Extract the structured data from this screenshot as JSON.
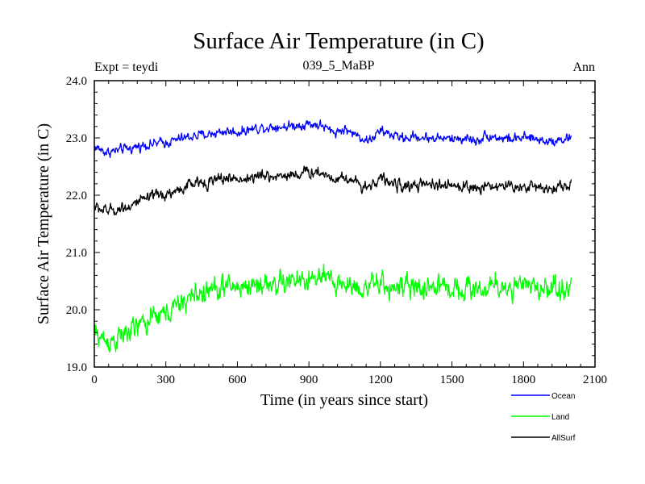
{
  "chart_data": {
    "type": "line",
    "title": "Surface Air Temperature (in C)",
    "subtitle": "039_5_MaBP",
    "experiment_label": "Expt = teydi",
    "season_label": "Ann",
    "xlabel": "Time (in years since start)",
    "ylabel": "Surface Air Temperature (in C)",
    "xlim": [
      0,
      2100
    ],
    "ylim": [
      19.0,
      24.0
    ],
    "x_ticks": [
      0,
      300,
      600,
      900,
      1200,
      1500,
      1800,
      2100
    ],
    "x_tick_labels": [
      "0",
      "300",
      "600",
      "900",
      "1200",
      "1500",
      "1800",
      "2100"
    ],
    "y_ticks": [
      19.0,
      20.0,
      21.0,
      22.0,
      23.0,
      24.0
    ],
    "y_tick_labels": [
      "19.0",
      "20.0",
      "21.0",
      "22.0",
      "23.0",
      "24.0"
    ],
    "grid": false,
    "legend_position": "bottom-right",
    "series": [
      {
        "name": "Ocean",
        "color": "#0000ff",
        "noise": 0.06,
        "keypoints": [
          [
            0,
            22.85
          ],
          [
            50,
            22.75
          ],
          [
            100,
            22.78
          ],
          [
            150,
            22.82
          ],
          [
            200,
            22.87
          ],
          [
            250,
            22.9
          ],
          [
            300,
            22.92
          ],
          [
            350,
            22.97
          ],
          [
            400,
            23.02
          ],
          [
            450,
            23.05
          ],
          [
            500,
            23.08
          ],
          [
            550,
            23.12
          ],
          [
            600,
            23.1
          ],
          [
            650,
            23.15
          ],
          [
            700,
            23.18
          ],
          [
            750,
            23.2
          ],
          [
            800,
            23.2
          ],
          [
            850,
            23.22
          ],
          [
            900,
            23.25
          ],
          [
            950,
            23.22
          ],
          [
            1000,
            23.1
          ],
          [
            1050,
            23.15
          ],
          [
            1100,
            23.05
          ],
          [
            1150,
            22.95
          ],
          [
            1200,
            23.12
          ],
          [
            1250,
            23.05
          ],
          [
            1300,
            23.0
          ],
          [
            1350,
            23.02
          ],
          [
            1400,
            23.0
          ],
          [
            1450,
            23.0
          ],
          [
            1500,
            22.98
          ],
          [
            1550,
            23.0
          ],
          [
            1600,
            22.95
          ],
          [
            1650,
            23.05
          ],
          [
            1700,
            23.0
          ],
          [
            1750,
            22.98
          ],
          [
            1800,
            23.0
          ],
          [
            1850,
            22.98
          ],
          [
            1900,
            22.95
          ],
          [
            1950,
            22.97
          ],
          [
            2000,
            23.0
          ]
        ]
      },
      {
        "name": "Land",
        "color": "#00ff00",
        "noise": 0.14,
        "keypoints": [
          [
            0,
            19.6
          ],
          [
            50,
            19.45
          ],
          [
            100,
            19.5
          ],
          [
            150,
            19.62
          ],
          [
            200,
            19.75
          ],
          [
            250,
            19.85
          ],
          [
            300,
            19.95
          ],
          [
            350,
            20.05
          ],
          [
            400,
            20.22
          ],
          [
            450,
            20.3
          ],
          [
            500,
            20.35
          ],
          [
            550,
            20.4
          ],
          [
            600,
            20.4
          ],
          [
            650,
            20.42
          ],
          [
            700,
            20.45
          ],
          [
            750,
            20.45
          ],
          [
            800,
            20.47
          ],
          [
            850,
            20.5
          ],
          [
            900,
            20.52
          ],
          [
            950,
            20.55
          ],
          [
            1000,
            20.48
          ],
          [
            1050,
            20.45
          ],
          [
            1100,
            20.4
          ],
          [
            1150,
            20.4
          ],
          [
            1200,
            20.43
          ],
          [
            1250,
            20.4
          ],
          [
            1300,
            20.38
          ],
          [
            1350,
            20.37
          ],
          [
            1400,
            20.4
          ],
          [
            1450,
            20.42
          ],
          [
            1500,
            20.38
          ],
          [
            1550,
            20.4
          ],
          [
            1600,
            20.35
          ],
          [
            1650,
            20.38
          ],
          [
            1700,
            20.4
          ],
          [
            1750,
            20.4
          ],
          [
            1800,
            20.38
          ],
          [
            1850,
            20.4
          ],
          [
            1900,
            20.4
          ],
          [
            1950,
            20.38
          ],
          [
            2000,
            20.4
          ]
        ]
      },
      {
        "name": "AllSurf",
        "color": "#000000",
        "noise": 0.07,
        "keypoints": [
          [
            0,
            21.8
          ],
          [
            50,
            21.72
          ],
          [
            100,
            21.76
          ],
          [
            150,
            21.82
          ],
          [
            200,
            21.9
          ],
          [
            250,
            21.97
          ],
          [
            300,
            22.02
          ],
          [
            350,
            22.08
          ],
          [
            400,
            22.18
          ],
          [
            450,
            22.22
          ],
          [
            500,
            22.25
          ],
          [
            550,
            22.3
          ],
          [
            600,
            22.28
          ],
          [
            650,
            22.3
          ],
          [
            700,
            22.33
          ],
          [
            750,
            22.33
          ],
          [
            800,
            22.35
          ],
          [
            850,
            22.37
          ],
          [
            900,
            22.4
          ],
          [
            950,
            22.4
          ],
          [
            1000,
            22.3
          ],
          [
            1050,
            22.32
          ],
          [
            1100,
            22.22
          ],
          [
            1150,
            22.15
          ],
          [
            1200,
            22.3
          ],
          [
            1250,
            22.2
          ],
          [
            1300,
            22.15
          ],
          [
            1350,
            22.17
          ],
          [
            1400,
            22.17
          ],
          [
            1450,
            22.17
          ],
          [
            1500,
            22.15
          ],
          [
            1550,
            22.17
          ],
          [
            1600,
            22.1
          ],
          [
            1650,
            22.2
          ],
          [
            1700,
            22.15
          ],
          [
            1750,
            22.15
          ],
          [
            1800,
            22.15
          ],
          [
            1850,
            22.15
          ],
          [
            1900,
            22.13
          ],
          [
            1950,
            22.15
          ],
          [
            2000,
            22.17
          ]
        ]
      }
    ]
  }
}
